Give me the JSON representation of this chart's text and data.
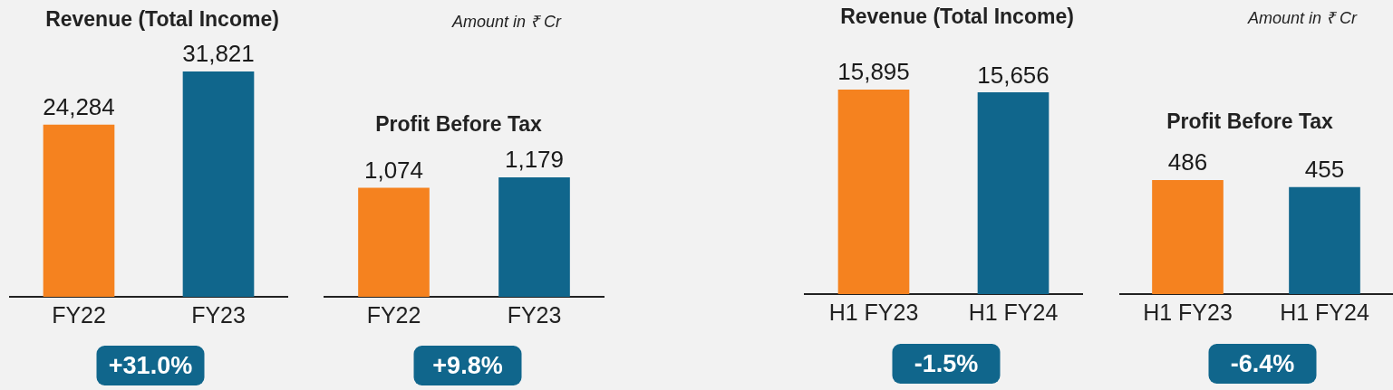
{
  "chart_data": [
    {
      "type": "bar",
      "title": "Revenue (Total Income)",
      "categories": [
        "FY22",
        "FY23"
      ],
      "values": [
        24284,
        31821
      ],
      "value_labels": [
        "24,284",
        "31,821"
      ],
      "colors": [
        "#f5821f",
        "#10668c"
      ],
      "tick_labels": "x",
      "annotations": [
        "+31.0%"
      ]
    },
    {
      "type": "bar",
      "title": "Profit Before Tax",
      "subtitle": "Amount in ₹ Cr",
      "categories": [
        "FY22",
        "FY23"
      ],
      "values": [
        1074,
        1179
      ],
      "value_labels": [
        "1,074",
        "1,179"
      ],
      "colors": [
        "#f5821f",
        "#10668c"
      ],
      "tick_labels": "x",
      "annotations": [
        "+9.8%"
      ]
    },
    {
      "type": "bar",
      "title": "Revenue (Total Income)",
      "categories": [
        "H1 FY23",
        "H1 FY24"
      ],
      "values": [
        15895,
        15656
      ],
      "value_labels": [
        "15,895",
        "15,656"
      ],
      "colors": [
        "#f5821f",
        "#10668c"
      ],
      "tick_labels": "x",
      "annotations": [
        "-1.5%"
      ]
    },
    {
      "type": "bar",
      "title": "Profit Before Tax",
      "subtitle": "Amount in ₹ Cr",
      "categories": [
        "H1 FY23",
        "H1 FY24"
      ],
      "values": [
        486,
        455
      ],
      "colors": [
        "#f5821f",
        "#10668c"
      ],
      "data_labels": true,
      "tick_labels": "x",
      "annotations": [
        "-6.4%"
      ]
    }
  ]
}
